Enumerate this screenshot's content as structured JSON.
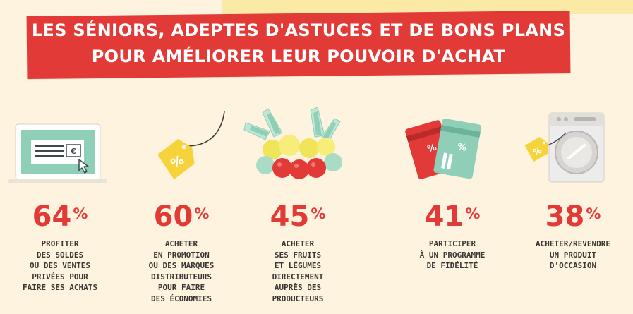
{
  "title": {
    "line1": "LES SÉNIORS, ADEPTES D'ASTUCES ET DE BONS PLANS",
    "line2": "POUR AMÉLIORER LEUR POUVOIR D'ACHAT"
  },
  "colors": {
    "banner": "#e23a36",
    "accent_red": "#e23a36",
    "background": "#fdf3df",
    "tag_yellow": "#f6d33a",
    "card_green": "#8fcfb8"
  },
  "stats": [
    {
      "value": "64",
      "unit": "%",
      "icon": "laptop-icon",
      "lines": [
        "PROFITER",
        "DES SOLDES",
        "OU DES VENTES",
        "PRIVÉES POUR",
        "FAIRE SES ACHATS"
      ]
    },
    {
      "value": "60",
      "unit": "%",
      "icon": "price-tag-icon",
      "tag_text": "%",
      "lines": [
        "ACHETER",
        "EN PROMOTION",
        "OU DES MARQUES",
        "DISTRIBUTEURS",
        "POUR FAIRE",
        "DES ÉCONOMIES"
      ]
    },
    {
      "value": "45",
      "unit": "%",
      "icon": "fruits-vegetables-icon",
      "lines": [
        "ACHETER",
        "SES FRUITS",
        "ET LÉGUMES",
        "DIRECTEMENT",
        "AUPRÈS DES",
        "PRODUCTEURS"
      ]
    },
    {
      "value": "41",
      "unit": "%",
      "icon": "loyalty-cards-icon",
      "card_text": "%",
      "lines": [
        "PARTICIPER",
        "À UN PROGRAMME",
        "DE FIDÉLITÉ"
      ]
    },
    {
      "value": "38",
      "unit": "%",
      "icon": "washing-machine-icon",
      "tag_text": "%",
      "lines": [
        "ACHETER/REVENDRE",
        "UN PRODUIT",
        "D'OCCASION"
      ]
    }
  ]
}
